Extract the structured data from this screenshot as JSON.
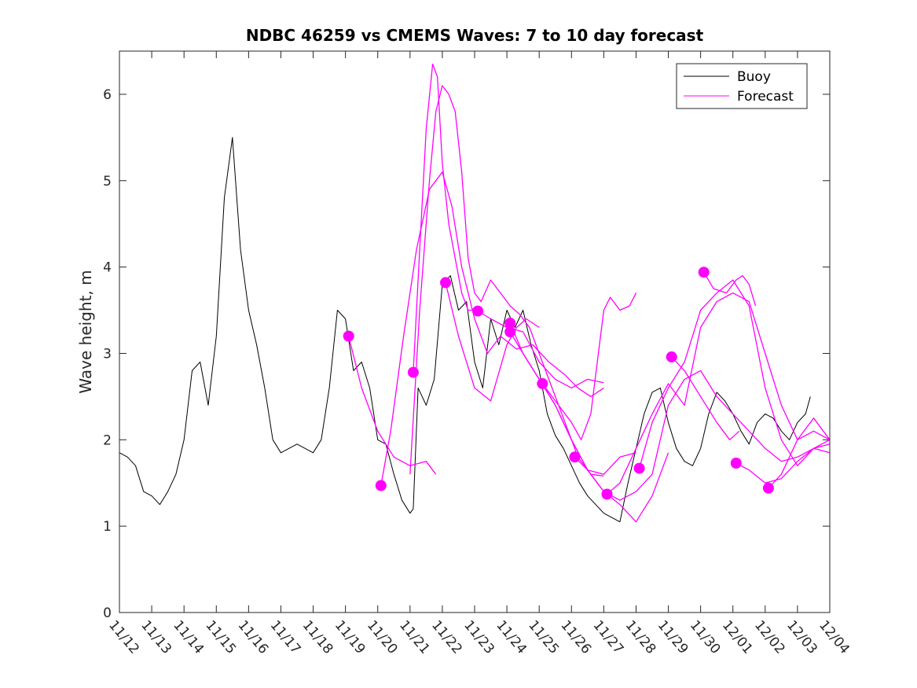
{
  "chart_data": {
    "type": "line",
    "title": "NDBC 46259 vs CMEMS Waves: 7 to 10 day forecast",
    "xlabel": "",
    "ylabel": "Wave height, m",
    "xlim": [
      0,
      22
    ],
    "ylim": [
      0,
      6.5
    ],
    "yticks": [
      0,
      1,
      2,
      3,
      4,
      5,
      6
    ],
    "xtick_labels": [
      "11/12",
      "11/13",
      "11/14",
      "11/15",
      "11/16",
      "11/17",
      "11/18",
      "11/19",
      "11/20",
      "11/21",
      "11/22",
      "11/23",
      "11/24",
      "11/25",
      "11/26",
      "11/27",
      "11/28",
      "11/29",
      "11/30",
      "12/01",
      "12/02",
      "12/03",
      "12/04"
    ],
    "legend": {
      "position": "top-right",
      "entries": [
        "Buoy",
        "Forecast"
      ]
    },
    "colors": {
      "buoy": "#000000",
      "forecast": "#ff00ff",
      "axes": "#262626"
    },
    "buoy": {
      "name": "Buoy",
      "x": [
        0,
        0.25,
        0.5,
        0.75,
        1.0,
        1.25,
        1.5,
        1.75,
        2.0,
        2.25,
        2.5,
        2.75,
        3.0,
        3.25,
        3.5,
        3.75,
        4.0,
        4.25,
        4.5,
        4.75,
        5.0,
        5.25,
        5.5,
        5.75,
        6.0,
        6.25,
        6.5,
        6.75,
        7.0,
        7.25,
        7.5,
        7.75,
        8.0,
        8.25,
        8.5,
        8.75,
        9.0,
        9.1,
        9.25,
        9.5,
        9.75,
        10.0,
        10.25,
        10.5,
        10.75,
        11.0,
        11.25,
        11.5,
        11.75,
        12.0,
        12.25,
        12.5,
        12.75,
        13.0,
        13.25,
        13.5,
        13.75,
        14.0,
        14.25,
        14.5,
        14.75,
        15.0,
        15.25,
        15.5,
        15.75,
        16.0,
        16.25,
        16.5,
        16.75,
        17.0,
        17.25,
        17.5,
        17.75,
        18.0,
        18.25,
        18.5,
        18.75,
        19.0,
        19.25,
        19.5,
        19.75,
        20.0,
        20.25,
        20.5,
        20.75,
        21.0,
        21.25,
        21.4
      ],
      "values": [
        1.85,
        1.8,
        1.7,
        1.4,
        1.35,
        1.25,
        1.4,
        1.6,
        2.0,
        2.8,
        2.9,
        2.4,
        3.2,
        4.8,
        5.5,
        4.2,
        3.5,
        3.1,
        2.6,
        2.0,
        1.85,
        1.9,
        1.95,
        1.9,
        1.85,
        2.0,
        2.6,
        3.5,
        3.4,
        2.8,
        2.9,
        2.6,
        2.0,
        1.95,
        1.6,
        1.3,
        1.15,
        1.2,
        2.6,
        2.4,
        2.7,
        3.8,
        3.9,
        3.5,
        3.6,
        2.9,
        2.6,
        3.4,
        3.1,
        3.5,
        3.3,
        3.5,
        3.1,
        2.8,
        2.3,
        2.05,
        1.9,
        1.7,
        1.5,
        1.35,
        1.25,
        1.15,
        1.1,
        1.05,
        1.5,
        1.9,
        2.3,
        2.55,
        2.6,
        2.2,
        1.9,
        1.75,
        1.7,
        1.9,
        2.3,
        2.55,
        2.45,
        2.3,
        2.1,
        1.95,
        2.2,
        2.3,
        2.25,
        2.1,
        2.0,
        2.2,
        2.3,
        2.5
      ]
    },
    "forecast_series": [
      {
        "name": "Forecast",
        "x": [
          7.1,
          7.5,
          8.0,
          8.5,
          9.0,
          9.5,
          9.8
        ],
        "values": [
          3.2,
          2.6,
          2.1,
          1.8,
          1.7,
          1.75,
          1.6
        ]
      },
      {
        "name": "Forecast",
        "x": [
          8.1,
          8.4,
          8.8,
          9.2,
          9.6,
          10.0,
          10.3,
          10.6,
          11.0,
          11.4,
          11.8,
          12.3,
          12.8,
          13.3,
          13.8,
          14.2,
          14.6,
          15.0
        ],
        "values": [
          1.47,
          2.1,
          3.2,
          4.2,
          4.9,
          5.1,
          4.7,
          4.0,
          3.4,
          3.0,
          3.2,
          3.05,
          3.1,
          2.9,
          2.75,
          2.6,
          2.5,
          2.6
        ]
      },
      {
        "name": "Forecast",
        "x": [
          9.1,
          9.3,
          9.5,
          9.7,
          9.85,
          10.0,
          10.2,
          10.4,
          10.6,
          10.8,
          11.0
        ],
        "values": [
          2.78,
          4.2,
          5.6,
          6.35,
          6.2,
          5.2,
          4.5,
          4.1,
          3.7,
          3.5,
          3.5
        ]
      },
      {
        "name": "Forecast",
        "x": [
          10.1,
          10.5,
          11.0,
          11.5,
          12.0,
          12.3,
          12.6,
          13.0
        ],
        "values": [
          3.82,
          3.2,
          2.6,
          2.45,
          3.1,
          3.3,
          3.4,
          3.3
        ]
      },
      {
        "name": "Forecast",
        "x": [
          9.0,
          9.3,
          9.6,
          9.8,
          10.0,
          10.2,
          10.4,
          10.6,
          10.8,
          11.0,
          11.2,
          11.5,
          11.8,
          12.1,
          12.4,
          12.7,
          13.0,
          13.4,
          13.8,
          14.2,
          14.6,
          15.0
        ],
        "values": [
          1.6,
          3.5,
          5.0,
          5.8,
          6.1,
          6.0,
          5.8,
          5.1,
          4.1,
          3.7,
          3.6,
          3.85,
          3.7,
          3.55,
          3.45,
          3.3,
          3.0,
          2.6,
          2.2,
          1.8,
          1.6,
          1.58
        ]
      },
      {
        "name": "Forecast",
        "x": [
          11.1,
          11.5,
          12.0,
          12.5,
          13.0,
          13.5,
          14.0,
          14.5,
          15.0
        ],
        "values": [
          3.49,
          3.4,
          3.3,
          3.25,
          2.9,
          2.7,
          2.6,
          2.7,
          2.66
        ]
      },
      {
        "name": "Forecast",
        "x": [
          12.1,
          12.5,
          13.0,
          13.5,
          14.0,
          14.3,
          14.6,
          15.0,
          15.2,
          15.5,
          15.8,
          16.0
        ],
        "values": [
          3.35,
          3.0,
          2.7,
          2.45,
          2.2,
          2.0,
          2.3,
          3.5,
          3.65,
          3.5,
          3.55,
          3.7
        ]
      },
      {
        "name": "Forecast",
        "x": [
          12.1,
          12.5,
          13.0,
          13.5,
          14.0,
          14.5,
          15.0,
          15.5,
          16.0
        ],
        "values": [
          3.25,
          3.0,
          2.7,
          2.4,
          2.0,
          1.65,
          1.6,
          1.8,
          1.85
        ]
      },
      {
        "name": "Forecast",
        "x": [
          13.1,
          13.5,
          14.0,
          14.5,
          15.0,
          15.5,
          16.0,
          16.5,
          17.0
        ],
        "values": [
          2.65,
          2.4,
          2.0,
          1.65,
          1.4,
          1.25,
          1.05,
          1.35,
          1.85
        ]
      },
      {
        "name": "Forecast",
        "x": [
          14.1,
          14.5,
          15.0,
          15.5,
          16.0,
          16.5,
          17.0,
          17.5,
          18.0,
          18.5,
          19.0,
          19.5,
          20.0,
          20.5,
          21.0,
          21.5,
          22.0
        ],
        "values": [
          1.8,
          1.65,
          1.4,
          1.3,
          1.4,
          1.6,
          2.4,
          2.7,
          2.8,
          2.5,
          2.3,
          2.1,
          1.9,
          1.75,
          1.8,
          1.9,
          1.85
        ]
      },
      {
        "name": "Forecast",
        "x": [
          15.1,
          15.5,
          16.0,
          16.5,
          17.0,
          17.5,
          18.0,
          18.5,
          19.0,
          19.5,
          20.0,
          20.5,
          21.0,
          21.5,
          22.0
        ],
        "values": [
          1.37,
          1.5,
          1.9,
          2.3,
          2.65,
          2.4,
          3.3,
          3.6,
          3.7,
          3.6,
          3.0,
          2.4,
          2.0,
          2.1,
          2.0
        ]
      },
      {
        "name": "Forecast",
        "x": [
          16.1,
          16.5,
          17.0,
          17.5,
          18.0,
          18.5,
          19.0,
          19.5,
          20.0,
          20.5,
          21.0,
          21.5,
          22.0
        ],
        "values": [
          1.67,
          2.2,
          2.6,
          2.9,
          3.5,
          3.7,
          3.85,
          3.55,
          2.6,
          2.0,
          1.7,
          1.9,
          2.0
        ]
      },
      {
        "name": "Forecast",
        "x": [
          17.1,
          17.5,
          18.0,
          18.5,
          18.9,
          19.2
        ],
        "values": [
          2.96,
          2.8,
          2.5,
          2.2,
          2.0,
          2.1
        ]
      },
      {
        "name": "Forecast",
        "x": [
          18.1,
          18.4,
          18.8,
          19.1,
          19.3,
          19.5,
          19.7
        ],
        "values": [
          3.94,
          3.75,
          3.7,
          3.85,
          3.9,
          3.8,
          3.55
        ]
      },
      {
        "name": "Forecast",
        "x": [
          19.1,
          19.5,
          20.0,
          20.5,
          21.0,
          21.5,
          22.0
        ],
        "values": [
          1.73,
          1.65,
          1.5,
          1.55,
          1.75,
          1.9,
          1.95
        ]
      },
      {
        "name": "Forecast",
        "x": [
          20.1,
          20.5,
          21.0,
          21.5,
          22.0
        ],
        "values": [
          1.44,
          1.6,
          2.0,
          2.25,
          2.0
        ]
      }
    ],
    "forecast_start_markers": {
      "name": "Forecast",
      "x": [
        7.1,
        8.1,
        9.1,
        10.1,
        11.1,
        12.1,
        12.1,
        13.1,
        14.1,
        15.1,
        16.1,
        17.1,
        18.1,
        19.1,
        20.1
      ],
      "values": [
        3.2,
        1.47,
        2.78,
        3.82,
        3.49,
        3.35,
        3.25,
        2.65,
        1.8,
        1.37,
        1.67,
        2.96,
        3.94,
        1.73,
        1.44
      ]
    }
  }
}
